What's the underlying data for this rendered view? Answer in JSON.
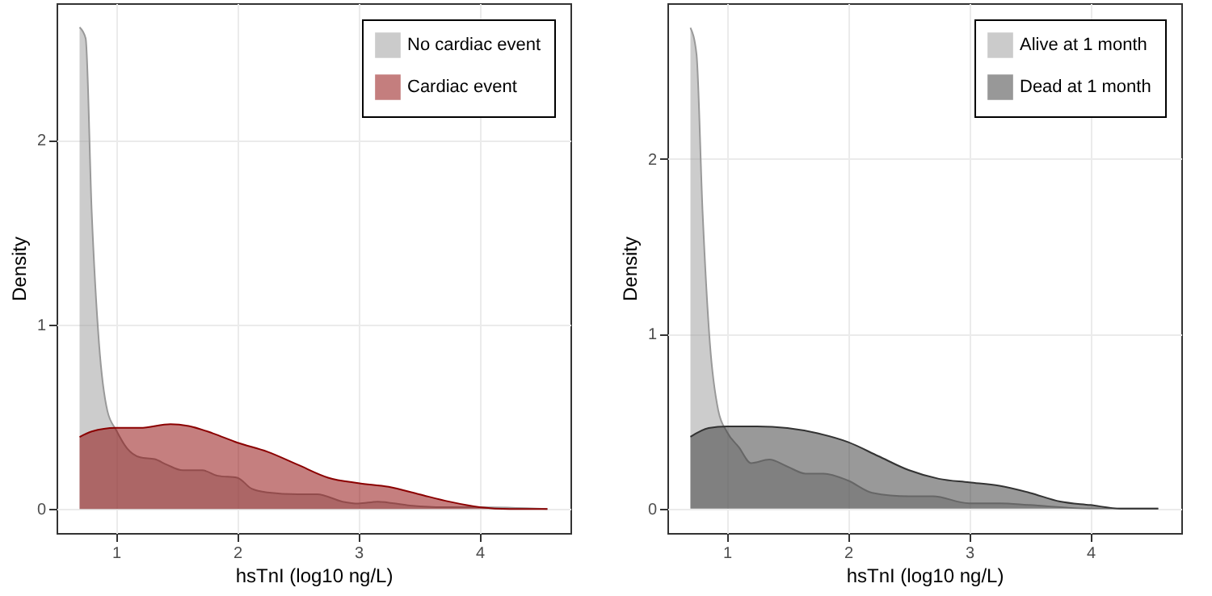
{
  "chart_data": [
    {
      "type": "area",
      "xlabel": "hsTnI (log10 ng/L)",
      "ylabel": "Density",
      "xlim": [
        0.51,
        4.75
      ],
      "ylim": [
        -0.13,
        2.74
      ],
      "xticks": [
        1,
        2,
        3,
        4
      ],
      "yticks": [
        0,
        1,
        2
      ],
      "grid": true,
      "legend": "top right",
      "series": [
        {
          "name": "No cardiac event",
          "color": "#999999",
          "x": [
            0.7,
            0.75,
            0.8,
            0.86,
            0.93,
            1.0,
            1.09,
            1.2,
            1.32,
            1.42,
            1.55,
            1.71,
            1.84,
            2.0,
            2.12,
            2.25,
            2.5,
            2.66,
            2.87,
            3.0,
            3.16,
            3.41,
            3.7,
            3.99,
            4.56
          ],
          "values": [
            2.61,
            2.55,
            1.61,
            0.9,
            0.53,
            0.43,
            0.33,
            0.28,
            0.27,
            0.24,
            0.21,
            0.21,
            0.18,
            0.17,
            0.11,
            0.09,
            0.08,
            0.08,
            0.04,
            0.03,
            0.04,
            0.02,
            0.01,
            0.01,
            0
          ]
        },
        {
          "name": "Cardiac event",
          "color": "#8b0000",
          "x": [
            0.7,
            0.8,
            1.0,
            1.2,
            1.45,
            1.6,
            1.8,
            2.0,
            2.25,
            2.5,
            2.75,
            3.0,
            3.25,
            3.5,
            3.75,
            4.0,
            4.25,
            4.56
          ],
          "values": [
            0.39,
            0.42,
            0.44,
            0.44,
            0.46,
            0.45,
            0.41,
            0.36,
            0.31,
            0.24,
            0.17,
            0.14,
            0.12,
            0.08,
            0.04,
            0.01,
            0,
            0
          ]
        }
      ]
    },
    {
      "type": "area",
      "xlabel": "hsTnI (log10 ng/L)",
      "ylabel": "Density",
      "xlim": [
        0.51,
        4.75
      ],
      "ylim": [
        -0.14,
        2.89
      ],
      "xticks": [
        1,
        2,
        3,
        4
      ],
      "yticks": [
        0,
        1,
        2
      ],
      "grid": true,
      "legend": "top right",
      "series": [
        {
          "name": "Alive at 1 month",
          "color": "#999999",
          "x": [
            0.7,
            0.75,
            0.8,
            0.86,
            0.93,
            1.0,
            1.1,
            1.2,
            1.35,
            1.5,
            1.65,
            1.8,
            2.0,
            2.2,
            2.5,
            2.7,
            3.0,
            3.25,
            3.5,
            4.0,
            4.56
          ],
          "values": [
            2.75,
            2.6,
            1.7,
            0.95,
            0.56,
            0.44,
            0.35,
            0.26,
            0.28,
            0.24,
            0.2,
            0.2,
            0.16,
            0.09,
            0.07,
            0.07,
            0.03,
            0.03,
            0.02,
            0,
            0
          ]
        },
        {
          "name": "Dead at 1 month",
          "color": "#333333",
          "x": [
            0.7,
            0.85,
            1.0,
            1.25,
            1.5,
            1.75,
            2.0,
            2.25,
            2.5,
            2.75,
            3.0,
            3.25,
            3.5,
            3.75,
            4.0,
            4.25,
            4.56
          ],
          "values": [
            0.41,
            0.46,
            0.47,
            0.47,
            0.46,
            0.43,
            0.38,
            0.3,
            0.22,
            0.17,
            0.15,
            0.13,
            0.09,
            0.04,
            0.02,
            0,
            0
          ]
        }
      ]
    }
  ]
}
